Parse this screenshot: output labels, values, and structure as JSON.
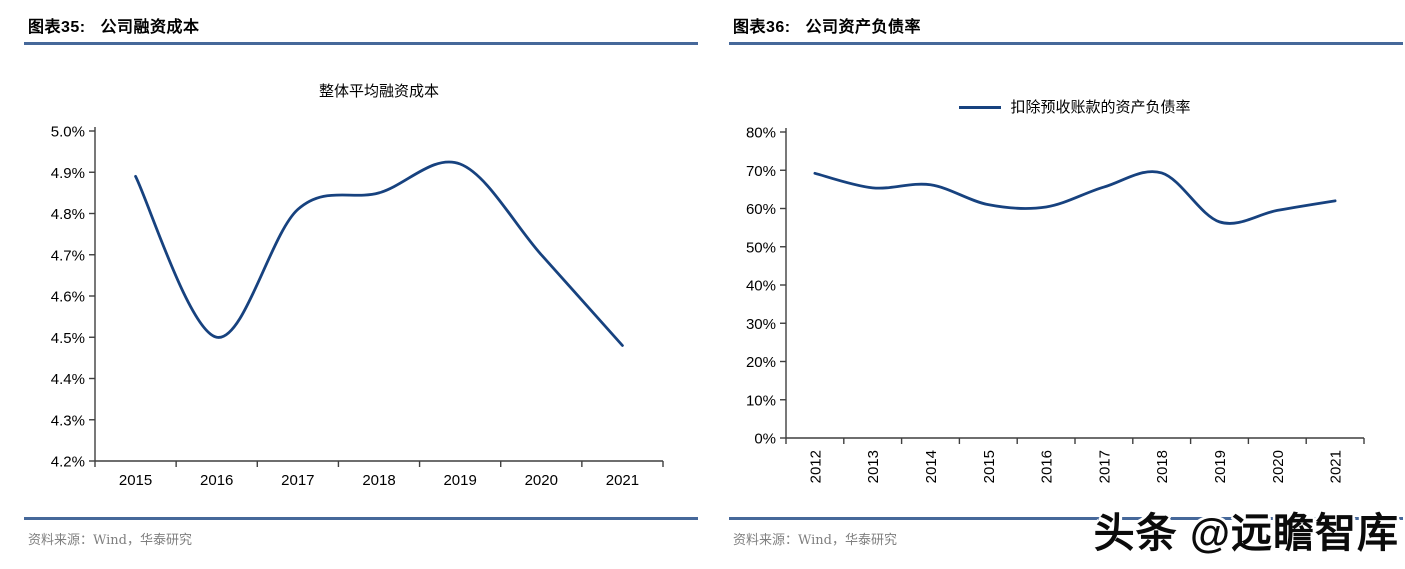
{
  "colors": {
    "line": "#17427F",
    "rule": "#46689A",
    "axis": "#3F3F3F",
    "source_text": "#7F7F7F"
  },
  "footer": {
    "source": "资料来源：Wind，华泰研究"
  },
  "watermark": {
    "text": "头条 @远瞻智库"
  },
  "chart_data": [
    {
      "type": "line",
      "figure_label": "图表35:   公司融资成本",
      "title": "整体平均融资成本",
      "legend": null,
      "categories": [
        "2015",
        "2016",
        "2017",
        "2018",
        "2019",
        "2020",
        "2021"
      ],
      "values": [
        4.89,
        4.5,
        4.81,
        4.85,
        4.92,
        4.7,
        4.48
      ],
      "unit": "%",
      "ylim": [
        4.2,
        5.0
      ],
      "ytick_step": 0.1,
      "ytick_decimals": 1,
      "grid": false,
      "smooth": true,
      "x_label_rotation": 0,
      "line_color": "#17427F",
      "xlabel": "",
      "ylabel": ""
    },
    {
      "type": "line",
      "figure_label": "图表36:   公司资产负债率",
      "title": "",
      "legend": "扣除预收账款的资产负债率",
      "legend_position": "top",
      "categories": [
        "2012",
        "2013",
        "2014",
        "2015",
        "2016",
        "2017",
        "2018",
        "2019",
        "2020",
        "2021"
      ],
      "values": [
        69.2,
        65.4,
        66.2,
        61.0,
        60.4,
        65.6,
        69.3,
        56.5,
        59.5,
        62.0
      ],
      "unit": "%",
      "ylim": [
        0,
        80
      ],
      "ytick_step": 10,
      "ytick_decimals": 0,
      "grid": false,
      "smooth": true,
      "x_label_rotation": -90,
      "line_color": "#17427F",
      "xlabel": "",
      "ylabel": ""
    }
  ]
}
